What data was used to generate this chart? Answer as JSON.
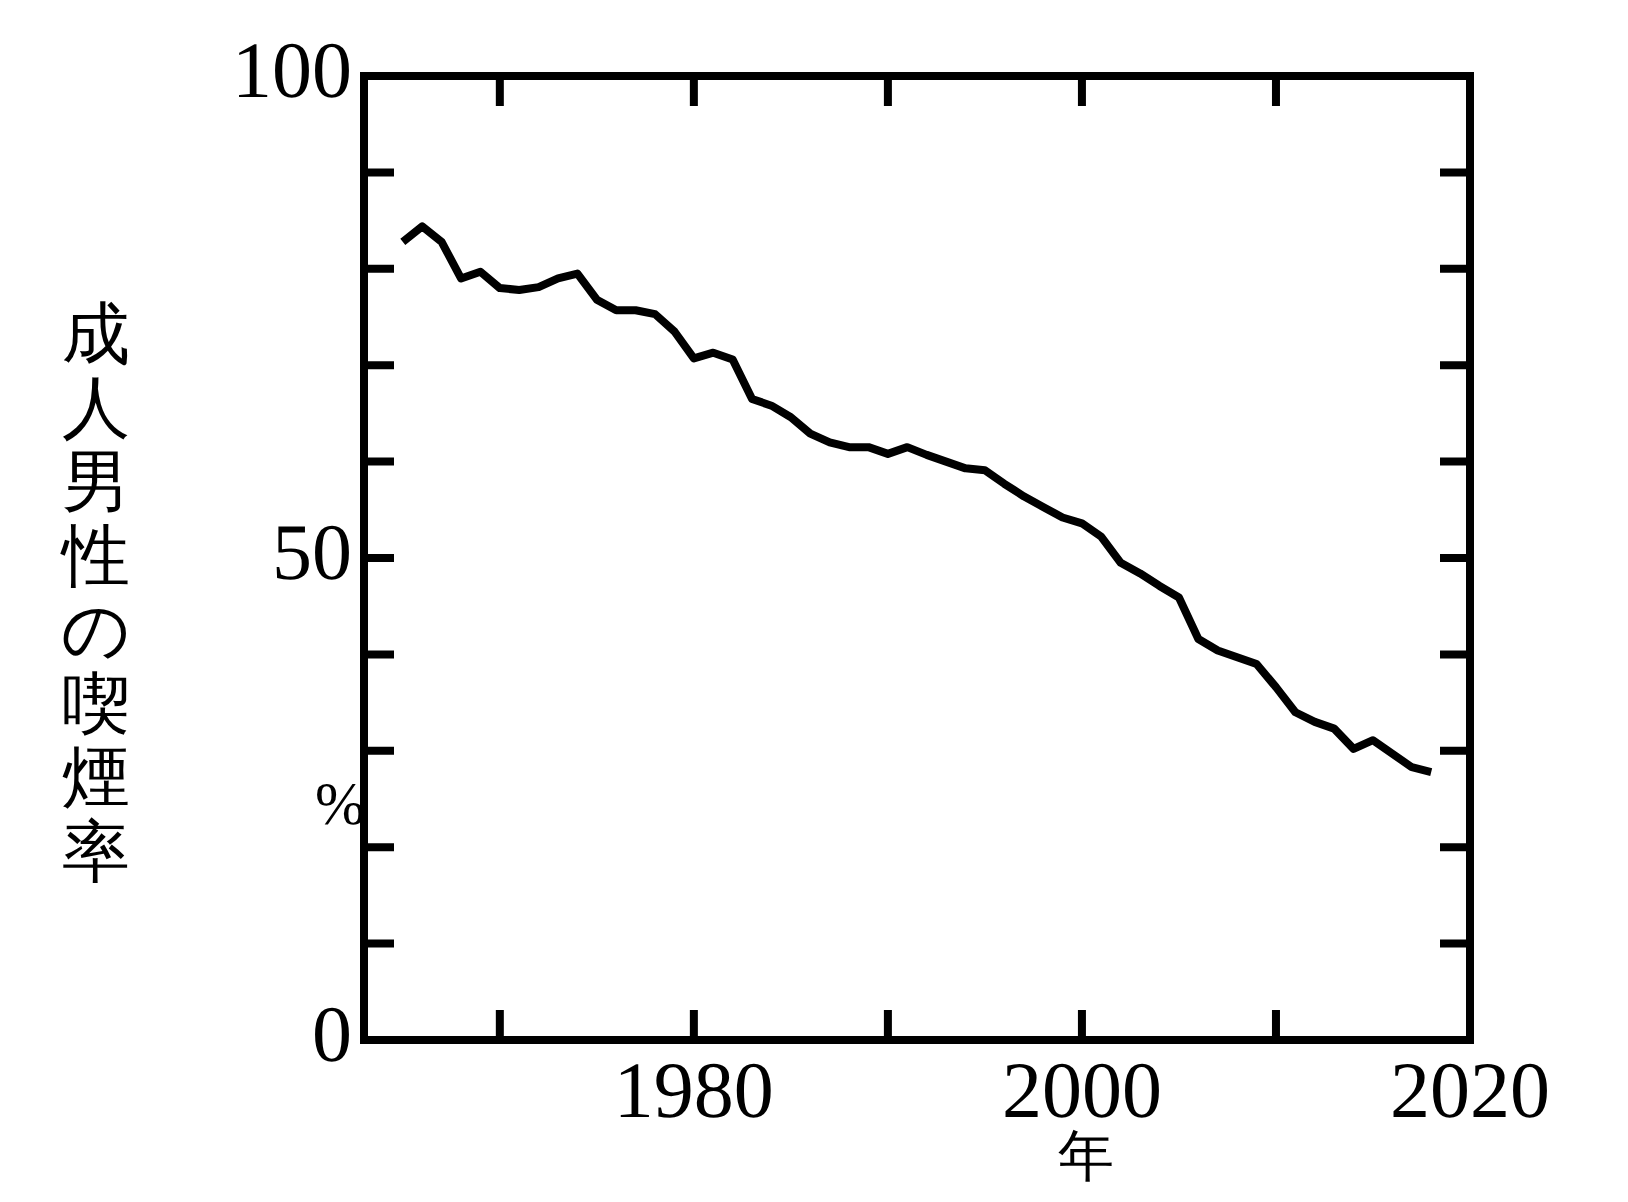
{
  "chart_data": {
    "type": "line",
    "ylabel": "成人男性の喫煙率",
    "xlabel": "年",
    "annotations": [
      "%"
    ],
    "x": [
      1965,
      1966,
      1967,
      1968,
      1969,
      1970,
      1971,
      1972,
      1973,
      1974,
      1975,
      1976,
      1977,
      1978,
      1979,
      1980,
      1981,
      1982,
      1983,
      1984,
      1985,
      1986,
      1987,
      1988,
      1989,
      1990,
      1991,
      1992,
      1993,
      1994,
      1995,
      1996,
      1997,
      1998,
      1999,
      2000,
      2001,
      2002,
      2003,
      2004,
      2005,
      2006,
      2007,
      2008,
      2009,
      2010,
      2011,
      2012,
      2013,
      2014,
      2015,
      2016,
      2017,
      2018
    ],
    "series": [
      {
        "color": "#000000",
        "values": [
          82.8,
          84.4,
          82.8,
          79.0,
          79.7,
          78.0,
          77.8,
          78.1,
          79.0,
          79.5,
          76.8,
          75.7,
          75.7,
          75.3,
          73.5,
          70.7,
          71.3,
          70.6,
          66.5,
          65.8,
          64.6,
          62.9,
          62.0,
          61.5,
          61.5,
          60.8,
          61.5,
          60.7,
          60.0,
          59.3,
          59.1,
          57.7,
          56.4,
          55.3,
          54.2,
          53.6,
          52.2,
          49.5,
          48.4,
          47.1,
          45.9,
          41.6,
          40.4,
          39.7,
          39.0,
          36.6,
          34.0,
          33.0,
          32.3,
          30.2,
          31.1,
          29.7,
          28.3,
          27.8
        ]
      }
    ],
    "xlim": [
      1963,
      2020
    ],
    "xticks": [
      {
        "value": 1970,
        "label": null
      },
      1980,
      {
        "value": 1990,
        "label": null
      },
      2000,
      {
        "value": 2010,
        "label": null
      },
      2020
    ],
    "ylim": [
      0,
      100
    ],
    "yticks": [
      0,
      {
        "value": 10,
        "label": null
      },
      {
        "value": 20,
        "label": null
      },
      {
        "value": 30,
        "label": null
      },
      {
        "value": 40,
        "label": null
      },
      50,
      {
        "value": 60,
        "label": null
      },
      {
        "value": 70,
        "label": null
      },
      {
        "value": 80,
        "label": null
      },
      {
        "value": 90,
        "label": null
      },
      100
    ],
    "grid": false,
    "legend": false,
    "marker": "none",
    "line_style": "solid"
  }
}
